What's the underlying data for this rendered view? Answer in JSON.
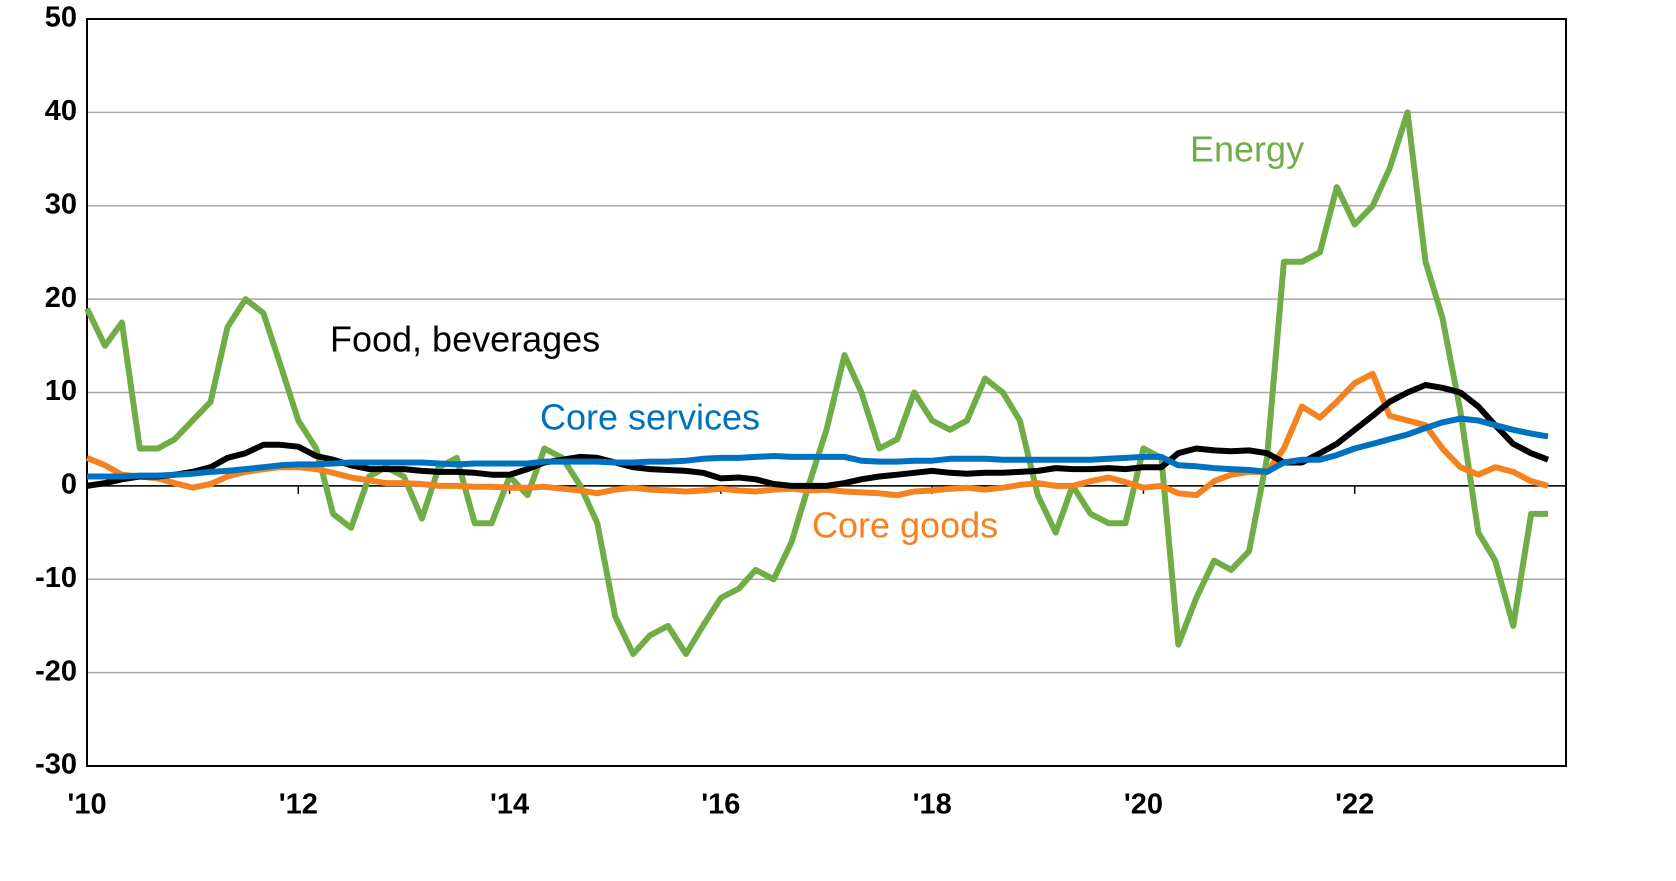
{
  "chart_data": {
    "type": "line",
    "x": [
      2010,
      2010.17,
      2010.33,
      2010.5,
      2010.67,
      2010.83,
      2011,
      2011.17,
      2011.33,
      2011.5,
      2011.67,
      2011.83,
      2012,
      2012.17,
      2012.33,
      2012.5,
      2012.67,
      2012.83,
      2013,
      2013.17,
      2013.33,
      2013.5,
      2013.67,
      2013.83,
      2014,
      2014.17,
      2014.33,
      2014.5,
      2014.67,
      2014.83,
      2015,
      2015.17,
      2015.33,
      2015.5,
      2015.67,
      2015.83,
      2016,
      2016.17,
      2016.33,
      2016.5,
      2016.67,
      2016.83,
      2017,
      2017.17,
      2017.33,
      2017.5,
      2017.67,
      2017.83,
      2018,
      2018.17,
      2018.33,
      2018.5,
      2018.67,
      2018.83,
      2019,
      2019.17,
      2019.33,
      2019.5,
      2019.67,
      2019.83,
      2020,
      2020.17,
      2020.33,
      2020.5,
      2020.67,
      2020.83,
      2021,
      2021.17,
      2021.33,
      2021.5,
      2021.67,
      2021.83,
      2022,
      2022.17,
      2022.33,
      2022.5,
      2022.67,
      2022.83,
      2023,
      2023.17,
      2023.33,
      2023.5,
      2023.67,
      2023.83
    ],
    "series": [
      {
        "name": "Energy",
        "color": "#70ad47",
        "values": [
          19,
          15,
          17.5,
          4,
          4,
          5,
          7,
          9,
          17,
          20,
          18.5,
          13,
          7,
          4,
          -3,
          -4.5,
          1,
          2,
          1,
          -3.5,
          2,
          3,
          -4,
          -4,
          1,
          -1,
          4,
          3,
          0,
          -4,
          -14,
          -18,
          -16,
          -15,
          -18,
          -15,
          -12,
          -11,
          -9,
          -10,
          -6,
          0,
          6,
          14,
          10,
          4,
          5,
          10,
          7,
          6,
          7,
          11.5,
          10,
          7,
          -1,
          -5,
          0,
          -3,
          -4,
          -4,
          4,
          3,
          -17,
          -12,
          -8,
          -9,
          -7,
          3,
          24,
          24,
          25,
          32,
          28,
          30,
          34,
          40,
          24,
          18,
          8,
          -5,
          -8,
          -15,
          -3,
          -3
        ]
      },
      {
        "name": "Food, beverages",
        "color": "#000000",
        "values": [
          0,
          0.3,
          0.7,
          1,
          1,
          1.2,
          1.5,
          2,
          3,
          3.5,
          4.4,
          4.4,
          4.2,
          3.2,
          2.8,
          2.2,
          1.8,
          1.8,
          1.8,
          1.6,
          1.5,
          1.5,
          1.4,
          1.2,
          1.2,
          1.8,
          2.5,
          2.8,
          3.1,
          3,
          2.5,
          2,
          1.8,
          1.7,
          1.6,
          1.4,
          0.8,
          0.9,
          0.7,
          0.2,
          0,
          0,
          0,
          0.3,
          0.7,
          1,
          1.2,
          1.4,
          1.6,
          1.4,
          1.3,
          1.4,
          1.4,
          1.5,
          1.6,
          1.9,
          1.8,
          1.8,
          1.9,
          1.8,
          2,
          2,
          3.5,
          4,
          3.8,
          3.7,
          3.8,
          3.5,
          2.5,
          2.5,
          3.5,
          4.5,
          6,
          7.5,
          9,
          10,
          10.8,
          10.5,
          10,
          8.5,
          6.5,
          4.5,
          3.5,
          2.8
        ]
      },
      {
        "name": "Core services",
        "color": "#0070c0",
        "values": [
          1,
          1,
          1,
          1.1,
          1.1,
          1.2,
          1.3,
          1.5,
          1.6,
          1.8,
          2,
          2.2,
          2.3,
          2.3,
          2.4,
          2.5,
          2.5,
          2.5,
          2.5,
          2.5,
          2.4,
          2.3,
          2.4,
          2.4,
          2.4,
          2.4,
          2.6,
          2.6,
          2.6,
          2.6,
          2.5,
          2.5,
          2.6,
          2.6,
          2.7,
          2.9,
          3,
          3,
          3.1,
          3.2,
          3.1,
          3.1,
          3.1,
          3.1,
          2.7,
          2.6,
          2.6,
          2.7,
          2.7,
          2.9,
          2.9,
          2.9,
          2.8,
          2.8,
          2.8,
          2.8,
          2.8,
          2.8,
          2.9,
          3,
          3.1,
          3.1,
          2.2,
          2.1,
          1.9,
          1.8,
          1.7,
          1.5,
          2.5,
          2.8,
          2.8,
          3.3,
          4,
          4.5,
          5,
          5.5,
          6.2,
          6.8,
          7.2,
          7,
          6.5,
          6,
          5.6,
          5.3
        ]
      },
      {
        "name": "Core goods",
        "color": "#f58220",
        "values": [
          3,
          2.2,
          1.2,
          1,
          0.8,
          0.3,
          -0.2,
          0.2,
          1,
          1.5,
          1.8,
          2,
          2,
          1.8,
          1.4,
          0.9,
          0.6,
          0.3,
          0.3,
          0.2,
          0,
          0,
          -0.1,
          -0.1,
          -0.2,
          -0.2,
          -0.1,
          -0.3,
          -0.5,
          -0.8,
          -0.4,
          -0.2,
          -0.4,
          -0.5,
          -0.6,
          -0.5,
          -0.3,
          -0.5,
          -0.6,
          -0.4,
          -0.3,
          -0.5,
          -0.4,
          -0.6,
          -0.7,
          -0.8,
          -1,
          -0.6,
          -0.5,
          -0.3,
          -0.2,
          -0.4,
          -0.2,
          0.1,
          0.3,
          0,
          0,
          0.5,
          0.9,
          0.4,
          -0.2,
          0,
          -0.8,
          -1,
          0.5,
          1.2,
          1.5,
          1.5,
          4,
          8.5,
          7.3,
          9,
          11,
          12,
          7.5,
          7,
          6.5,
          4,
          2,
          1.2,
          2,
          1.5,
          0.5,
          0
        ]
      }
    ],
    "xlim": [
      2010,
      2024
    ],
    "xticks": [
      {
        "value": 2010,
        "label": "'10"
      },
      {
        "value": 2012,
        "label": "'12"
      },
      {
        "value": 2014,
        "label": "'14"
      },
      {
        "value": 2016,
        "label": "'16"
      },
      {
        "value": 2018,
        "label": "'18"
      },
      {
        "value": 2020,
        "label": "'20"
      },
      {
        "value": 2022,
        "label": "'22"
      }
    ],
    "ylim": [
      -30,
      50
    ],
    "yticks": [
      -30,
      -20,
      -10,
      0,
      10,
      20,
      30,
      40,
      50
    ],
    "grid": true
  }
}
